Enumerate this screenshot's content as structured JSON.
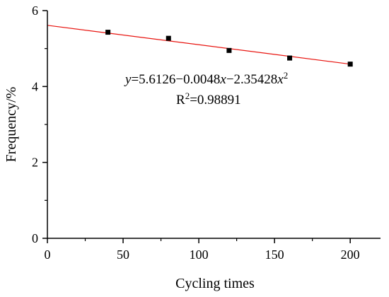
{
  "chart_data": {
    "type": "scatter",
    "xlabel": "Cycling times",
    "ylabel": "Frequency/%",
    "xlim": [
      0,
      220
    ],
    "ylim": [
      0,
      6
    ],
    "xticks": [
      0,
      50,
      100,
      150,
      200
    ],
    "xtick_labels": [
      "0",
      "50",
      "100",
      "150",
      "200"
    ],
    "yticks": [
      0,
      2,
      4,
      6
    ],
    "ytick_labels": [
      "0",
      "2",
      "4",
      "6"
    ],
    "grid": false,
    "series": [
      {
        "type": "scatter",
        "color": "#000000",
        "points": [
          {
            "x": 40,
            "y": 5.43
          },
          {
            "x": 80,
            "y": 5.27
          },
          {
            "x": 120,
            "y": 4.95
          },
          {
            "x": 160,
            "y": 4.75
          },
          {
            "x": 200,
            "y": 4.59
          }
        ]
      },
      {
        "type": "line",
        "color": "#e8140f",
        "points": [
          {
            "x": 0,
            "y": 5.6126
          },
          {
            "x": 200,
            "y": 4.59
          }
        ]
      }
    ],
    "annotations": {
      "equation": {
        "y_var": "y",
        "eq_a": "=5.6126−0.0048",
        "x_var1": "x",
        "eq_b": "−2.35428",
        "x_var2": "x",
        "exp": "2"
      },
      "r2": {
        "base": "R",
        "exp": "2",
        "value": "=0.98891"
      }
    }
  }
}
